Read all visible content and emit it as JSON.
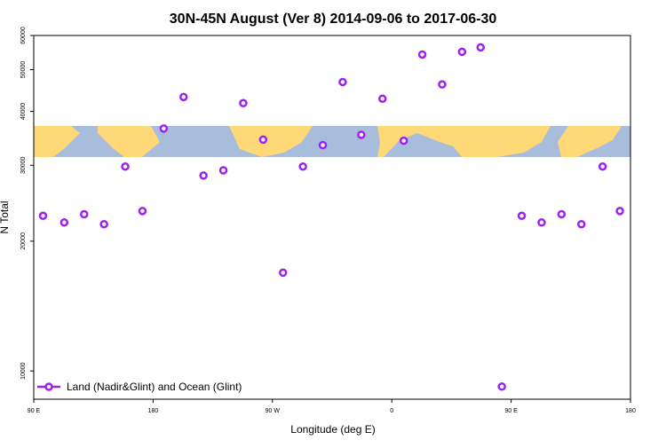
{
  "chart_data": {
    "type": "scatter",
    "title": "30N-45N August (Ver 8)   2014-09-06 to 2017-06-30",
    "x_label": "Longitude (deg E)",
    "y_label": "N Total",
    "y_log": true,
    "legend_position": "bottom-left",
    "xlim": [
      90,
      540
    ],
    "ylim": [
      8600,
      60000
    ],
    "xticks": [
      {
        "value": 90,
        "label": "90 E"
      },
      180,
      {
        "value": 270,
        "label": "90 W"
      },
      {
        "value": 360,
        "label": "0"
      },
      {
        "value": 450,
        "label": "90 E"
      },
      {
        "value": 540,
        "label": "180"
      }
    ],
    "yticks": [
      10000,
      20000,
      30000,
      40000,
      50000,
      60000
    ],
    "series": [
      {
        "name": "Land (Nadir&Glint) and Ocean (Glint)",
        "color": "#a020f0",
        "x": [
          97,
          113,
          128,
          143,
          159,
          172,
          188,
          203,
          218,
          233,
          248,
          263,
          278,
          293,
          308,
          323,
          337,
          353,
          369,
          383,
          398,
          413,
          427,
          443,
          458,
          473,
          488,
          503,
          519,
          532
        ],
        "values": [
          22900,
          22100,
          23100,
          21900,
          29800,
          23500,
          36500,
          43200,
          28400,
          29200,
          41800,
          34400,
          16900,
          29800,
          33400,
          46800,
          35300,
          42800,
          34200,
          54200,
          46200,
          55000,
          56300,
          9200,
          22900,
          22100,
          23100,
          21900,
          29800,
          23500
        ]
      }
    ]
  }
}
